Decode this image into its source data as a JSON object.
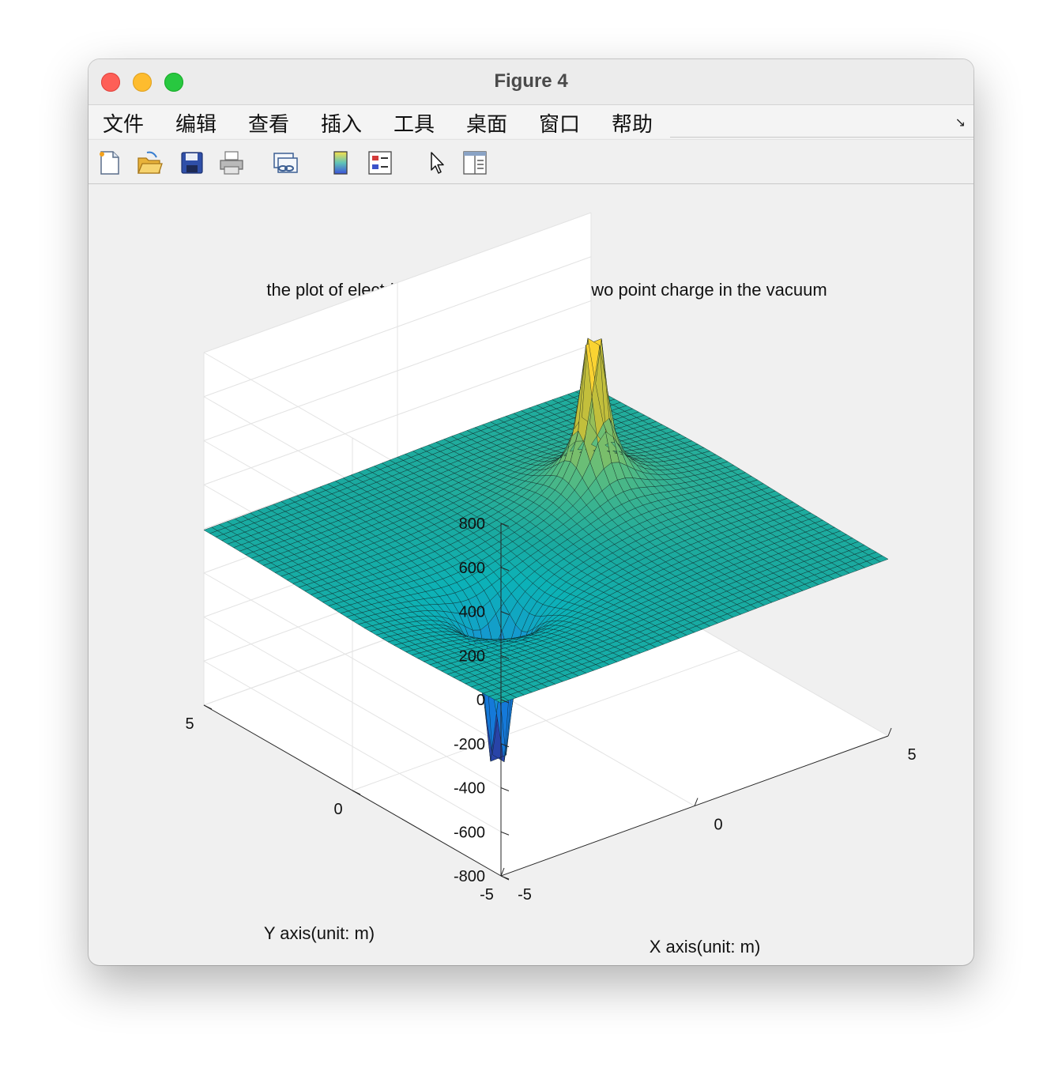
{
  "window": {
    "title": "Figure 4"
  },
  "menu": [
    "文件",
    "编辑",
    "查看",
    "插入",
    "工具",
    "桌面",
    "窗口",
    "帮助"
  ],
  "toolbar_icons": [
    "new-file-icon",
    "open-folder-icon",
    "save-icon",
    "print-icon",
    "link-plot-icon",
    "colorbar-icon",
    "legend-icon",
    "pointer-icon",
    "property-inspector-icon"
  ],
  "chart_data": {
    "type": "surface",
    "title": "the plot of electric potential distribution of two point charge in the vacuum",
    "xlabel": "X axis(unit: m)",
    "ylabel": "Y axis(unit: m)",
    "xlim": [
      -5,
      5
    ],
    "ylim": [
      -5,
      5
    ],
    "zlim": [
      -800,
      800
    ],
    "x_ticks": [
      "-5",
      "0",
      "5"
    ],
    "y_ticks": [
      "-5",
      "0",
      "5"
    ],
    "z_ticks": [
      "-800",
      "-600",
      "-400",
      "-200",
      "0",
      "200",
      "400",
      "600",
      "800"
    ],
    "grid": true,
    "colormap": "parula",
    "peaks": [
      {
        "sign": "positive",
        "x": 2.0,
        "y": 1.0,
        "z": 750
      },
      {
        "sign": "negative",
        "x": -2.0,
        "y": -1.0,
        "z": -800
      }
    ]
  }
}
